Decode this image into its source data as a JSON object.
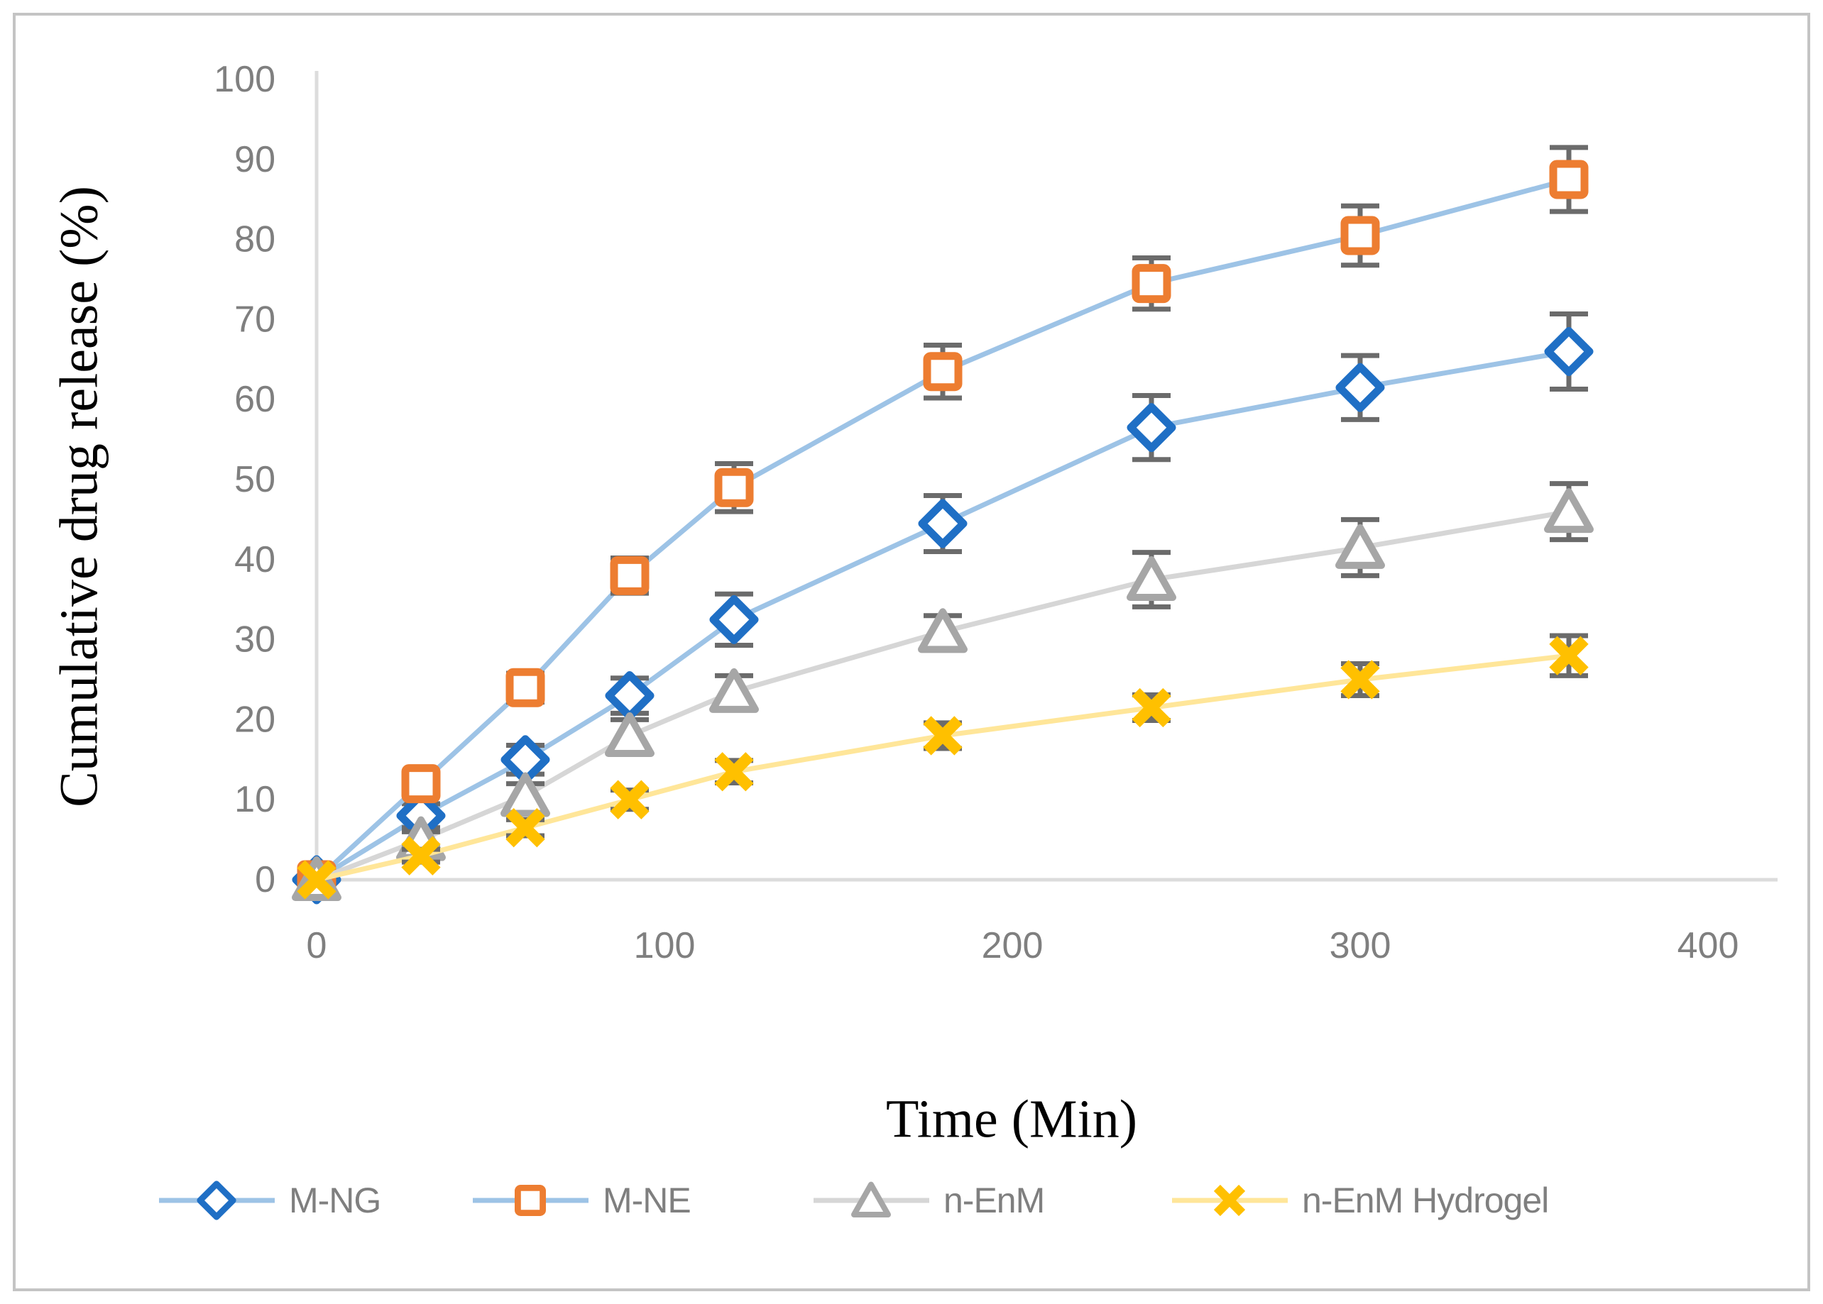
{
  "figure": {
    "border_color": "#C4C4C4",
    "background_color": "#FFFFFF"
  },
  "chart_data": {
    "type": "line",
    "title": "",
    "xlabel": "Time (Min)",
    "ylabel": "Cumulative drug release (%)",
    "x": [
      0,
      30,
      60,
      90,
      120,
      180,
      240,
      300,
      360
    ],
    "x_ticks": [
      0,
      100,
      200,
      300,
      400
    ],
    "y_ticks": [
      0,
      10,
      20,
      30,
      40,
      50,
      60,
      70,
      80,
      90,
      100
    ],
    "xlim": [
      0,
      420
    ],
    "ylim": [
      0,
      100
    ],
    "grid": false,
    "legend_position": "bottom",
    "error_bars": true,
    "error_bar_color": "#6B6B6B",
    "axis_line_color": "#DCDCDC",
    "tick_label_color": "#7F7F7F",
    "series": [
      {
        "name": "M-NG",
        "marker": "diamond",
        "marker_color": "#1F6FC5",
        "line_color": "#9DC3E6",
        "values": [
          0,
          8,
          15,
          23,
          32.5,
          44.5,
          56.5,
          61.5,
          66
        ],
        "errors": [
          0,
          1.5,
          1.8,
          2.2,
          3.2,
          3.5,
          4,
          4,
          4.7
        ]
      },
      {
        "name": "M-NE",
        "marker": "square",
        "marker_color": "#ED7D31",
        "line_color": "#9DC3E6",
        "values": [
          0,
          12,
          24,
          38,
          49,
          63.5,
          74.5,
          80.5,
          87.5
        ],
        "errors": [
          0,
          1.5,
          1.8,
          2.2,
          3,
          3.3,
          3.2,
          3.7,
          4
        ]
      },
      {
        "name": "n-EnM",
        "marker": "triangle",
        "marker_color": "#A6A6A6",
        "line_color": "#D6D6D6",
        "values": [
          0,
          5,
          10.5,
          18,
          23.5,
          31,
          37.5,
          41.5,
          46
        ],
        "errors": [
          0,
          1,
          1.5,
          2,
          2,
          2,
          3.4,
          3.5,
          3.5
        ]
      },
      {
        "name": "n-EnM Hydrogel",
        "marker": "x",
        "marker_color": "#FFC000",
        "line_color": "#FFE699",
        "values": [
          0,
          3,
          6.5,
          10,
          13.5,
          18,
          21.5,
          25,
          28
        ],
        "errors": [
          0,
          0.8,
          1,
          1.2,
          1.4,
          1.6,
          1.6,
          2,
          2.5
        ]
      }
    ]
  }
}
